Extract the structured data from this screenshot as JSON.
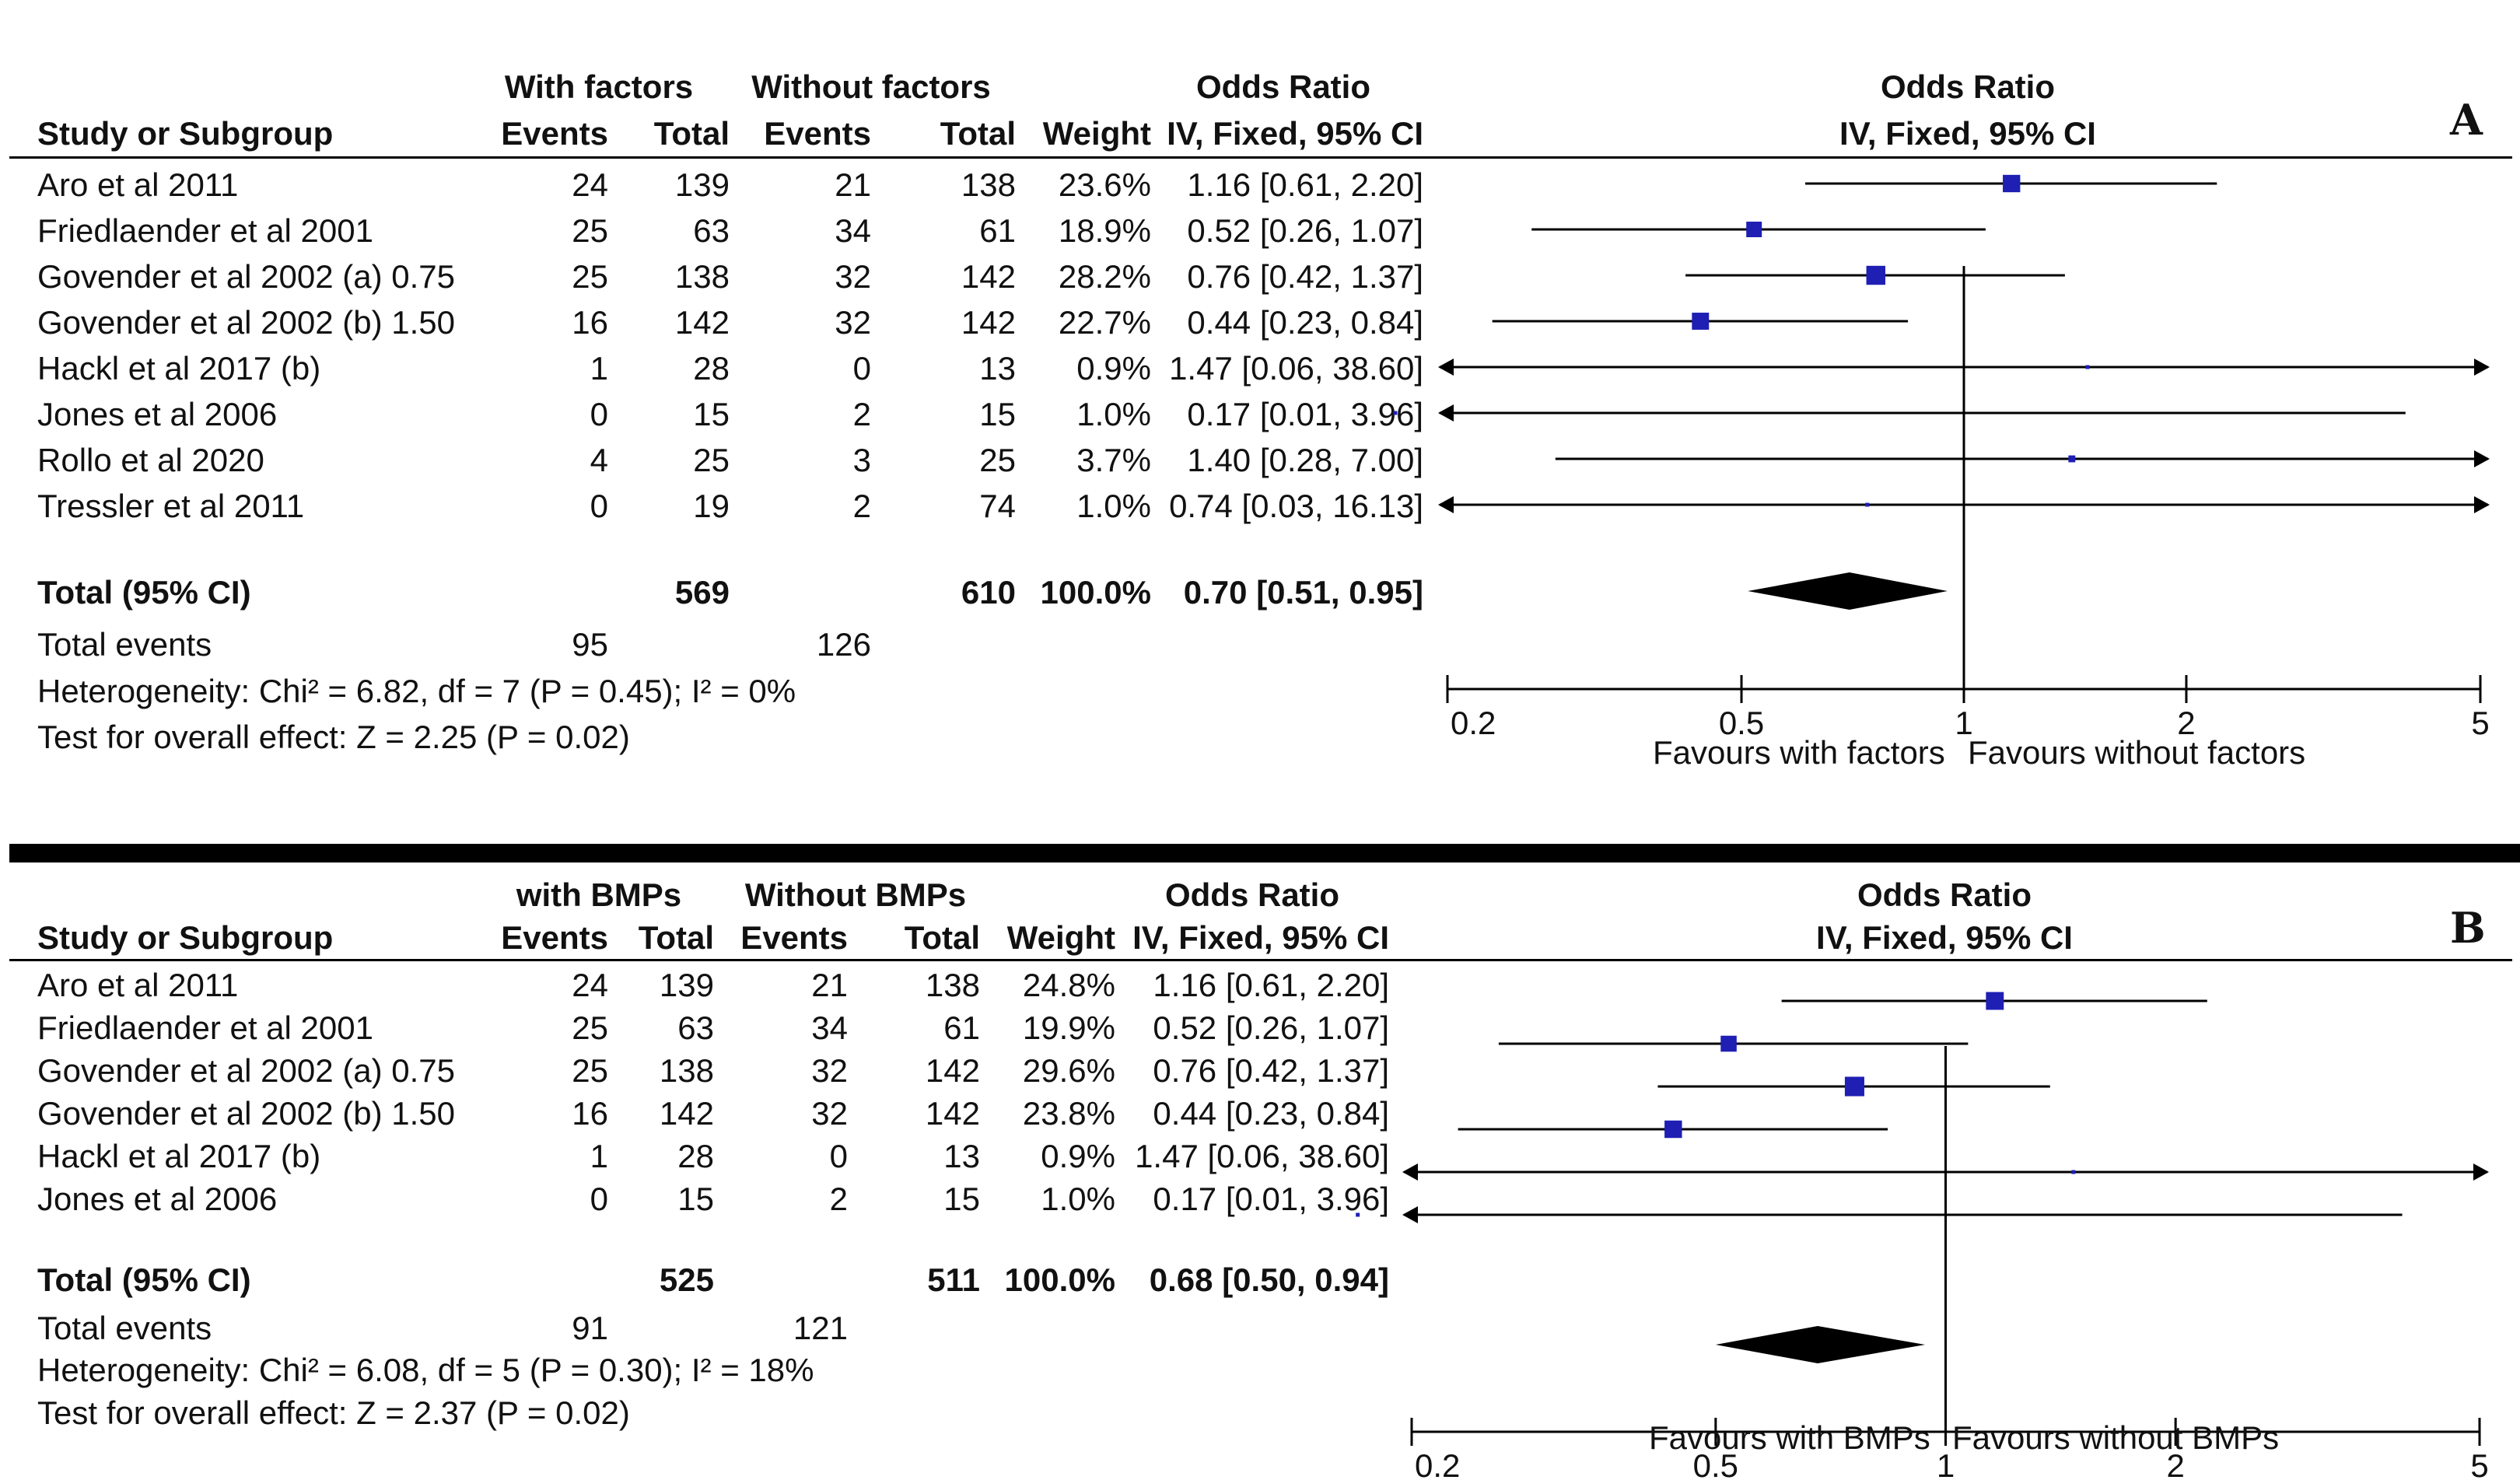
{
  "colors": {
    "marker": "#1f1fb4",
    "line": "#000000",
    "diamond": "#000000"
  },
  "panels": [
    {
      "letter": "A",
      "header": {
        "study": "Study or Subgroup",
        "group1": "With factors",
        "group2": "Without factors",
        "events": "Events",
        "total": "Total",
        "weight": "Weight",
        "or_title": "Odds Ratio",
        "or_method": "IV, Fixed, 95% CI",
        "plot_title": "Odds Ratio",
        "plot_method": "IV, Fixed, 95% CI"
      },
      "rows": [
        {
          "study": "Aro et al 2011",
          "e1": "24",
          "t1": "139",
          "e2": "21",
          "t2": "138",
          "weight": "23.6%",
          "ci": "1.16 [0.61, 2.20]"
        },
        {
          "study": "Friedlaender et al 2001",
          "e1": "25",
          "t1": "63",
          "e2": "34",
          "t2": "61",
          "weight": "18.9%",
          "ci": "0.52 [0.26, 1.07]"
        },
        {
          "study": "Govender et al 2002  (a) 0.75",
          "e1": "25",
          "t1": "138",
          "e2": "32",
          "t2": "142",
          "weight": "28.2%",
          "ci": "0.76 [0.42, 1.37]"
        },
        {
          "study": "Govender et al 2002  (b) 1.50",
          "e1": "16",
          "t1": "142",
          "e2": "32",
          "t2": "142",
          "weight": "22.7%",
          "ci": "0.44 [0.23, 0.84]"
        },
        {
          "study": "Hackl et al 2017 (b)",
          "e1": "1",
          "t1": "28",
          "e2": "0",
          "t2": "13",
          "weight": "0.9%",
          "ci": "1.47 [0.06, 38.60]"
        },
        {
          "study": "Jones et al 2006",
          "e1": "0",
          "t1": "15",
          "e2": "2",
          "t2": "15",
          "weight": "1.0%",
          "ci": "0.17 [0.01, 3.96]"
        },
        {
          "study": "Rollo et al 2020",
          "e1": "4",
          "t1": "25",
          "e2": "3",
          "t2": "25",
          "weight": "3.7%",
          "ci": "1.40 [0.28, 7.00]"
        },
        {
          "study": "Tressler et al 2011",
          "e1": "0",
          "t1": "19",
          "e2": "2",
          "t2": "74",
          "weight": "1.0%",
          "ci": "0.74 [0.03, 16.13]"
        }
      ],
      "total": {
        "label": "Total (95% CI)",
        "t1": "569",
        "t2": "610",
        "weight": "100.0%",
        "ci": "0.70 [0.51, 0.95]"
      },
      "total_events": {
        "label": "Total events",
        "e1": "95",
        "e2": "126"
      },
      "heterogeneity": "Heterogeneity: Chi² = 6.82, df = 7 (P = 0.45); I² = 0%",
      "overall": "Test for overall effect: Z = 2.25 (P = 0.02)",
      "favours_left": "Favours with factors",
      "favours_right": "Favours without factors"
    },
    {
      "letter": "B",
      "header": {
        "study": "Study or Subgroup",
        "group1": "with BMPs",
        "group2": "Without BMPs",
        "events": "Events",
        "total": "Total",
        "weight": "Weight",
        "or_title": "Odds Ratio",
        "or_method": "IV, Fixed, 95% CI",
        "plot_title": "Odds Ratio",
        "plot_method": "IV, Fixed, 95% CI"
      },
      "rows": [
        {
          "study": "Aro et al 2011",
          "e1": "24",
          "t1": "139",
          "e2": "21",
          "t2": "138",
          "weight": "24.8%",
          "ci": "1.16 [0.61, 2.20]"
        },
        {
          "study": "Friedlaender et al 2001",
          "e1": "25",
          "t1": "63",
          "e2": "34",
          "t2": "61",
          "weight": "19.9%",
          "ci": "0.52 [0.26, 1.07]"
        },
        {
          "study": "Govender et al 2002  (a) 0.75",
          "e1": "25",
          "t1": "138",
          "e2": "32",
          "t2": "142",
          "weight": "29.6%",
          "ci": "0.76 [0.42, 1.37]"
        },
        {
          "study": "Govender et al 2002  (b) 1.50",
          "e1": "16",
          "t1": "142",
          "e2": "32",
          "t2": "142",
          "weight": "23.8%",
          "ci": "0.44 [0.23, 0.84]"
        },
        {
          "study": "Hackl et al 2017 (b)",
          "e1": "1",
          "t1": "28",
          "e2": "0",
          "t2": "13",
          "weight": "0.9%",
          "ci": "1.47 [0.06, 38.60]"
        },
        {
          "study": "Jones et al 2006",
          "e1": "0",
          "t1": "15",
          "e2": "2",
          "t2": "15",
          "weight": "1.0%",
          "ci": "0.17 [0.01, 3.96]"
        }
      ],
      "total": {
        "label": "Total (95% CI)",
        "t1": "525",
        "t2": "511",
        "weight": "100.0%",
        "ci": "0.68 [0.50, 0.94]"
      },
      "total_events": {
        "label": "Total events",
        "e1": "91",
        "e2": "121"
      },
      "heterogeneity": "Heterogeneity: Chi² = 6.08, df = 5 (P = 0.30); I² = 18%",
      "overall": "Test for overall effect: Z = 2.37 (P = 0.02)",
      "favours_left": "Favours with BMPs",
      "favours_right": "Favours without BMPs"
    }
  ],
  "chart_data": [
    {
      "type": "forest",
      "scale": "log",
      "xlim": [
        0.2,
        5
      ],
      "ticks": [
        0.2,
        0.5,
        1,
        2,
        5
      ],
      "tick_labels": [
        "0.2",
        "0.5",
        "1",
        "2",
        "5"
      ],
      "reference_line": 1,
      "studies": [
        {
          "name": "Aro et al 2011",
          "or": 1.16,
          "lo": 0.61,
          "hi": 2.2,
          "weight": 23.6
        },
        {
          "name": "Friedlaender et al 2001",
          "or": 0.52,
          "lo": 0.26,
          "hi": 1.07,
          "weight": 18.9
        },
        {
          "name": "Govender et al 2002  (a) 0.75",
          "or": 0.76,
          "lo": 0.42,
          "hi": 1.37,
          "weight": 28.2
        },
        {
          "name": "Govender et al 2002  (b) 1.50",
          "or": 0.44,
          "lo": 0.23,
          "hi": 0.84,
          "weight": 22.7
        },
        {
          "name": "Hackl et al 2017 (b)",
          "or": 1.47,
          "lo": 0.06,
          "hi": 38.6,
          "weight": 0.9
        },
        {
          "name": "Jones et al 2006",
          "or": 0.17,
          "lo": 0.01,
          "hi": 3.96,
          "weight": 1.0
        },
        {
          "name": "Rollo et al 2020",
          "or": 1.4,
          "lo": 0.28,
          "hi": 7.0,
          "weight": 3.7
        },
        {
          "name": "Tressler et al 2011",
          "or": 0.74,
          "lo": 0.03,
          "hi": 16.13,
          "weight": 1.0
        }
      ],
      "pooled": {
        "or": 0.7,
        "lo": 0.51,
        "hi": 0.95
      }
    },
    {
      "type": "forest",
      "scale": "log",
      "xlim": [
        0.2,
        5
      ],
      "ticks": [
        0.2,
        0.5,
        1,
        2,
        5
      ],
      "tick_labels": [
        "0.2",
        "0.5",
        "1",
        "2",
        "5"
      ],
      "reference_line": 1,
      "studies": [
        {
          "name": "Aro et al 2011",
          "or": 1.16,
          "lo": 0.61,
          "hi": 2.2,
          "weight": 24.8
        },
        {
          "name": "Friedlaender et al 2001",
          "or": 0.52,
          "lo": 0.26,
          "hi": 1.07,
          "weight": 19.9
        },
        {
          "name": "Govender et al 2002  (a) 0.75",
          "or": 0.76,
          "lo": 0.42,
          "hi": 1.37,
          "weight": 29.6
        },
        {
          "name": "Govender et al 2002  (b) 1.50",
          "or": 0.44,
          "lo": 0.23,
          "hi": 0.84,
          "weight": 23.8
        },
        {
          "name": "Hackl et al 2017 (b)",
          "or": 1.47,
          "lo": 0.06,
          "hi": 38.6,
          "weight": 0.9
        },
        {
          "name": "Jones et al 2006",
          "or": 0.17,
          "lo": 0.01,
          "hi": 3.96,
          "weight": 1.0
        }
      ],
      "pooled": {
        "or": 0.68,
        "lo": 0.5,
        "hi": 0.94
      }
    }
  ]
}
